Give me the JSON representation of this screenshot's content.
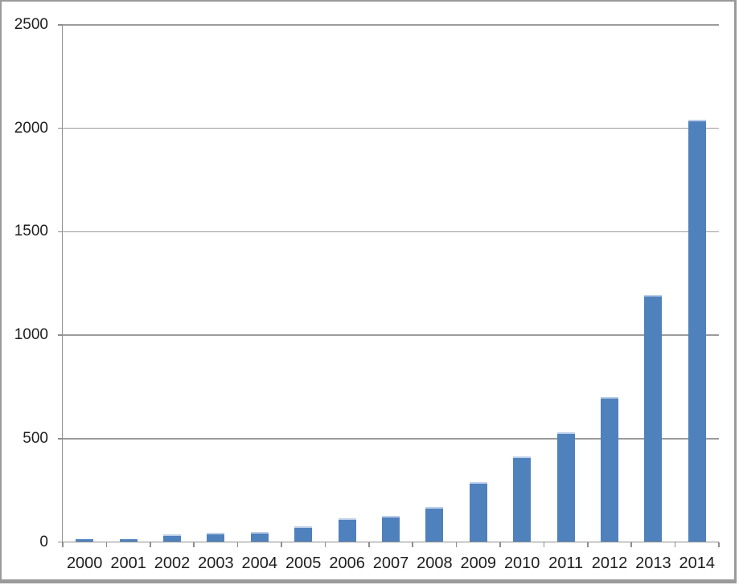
{
  "chart_data": {
    "type": "bar",
    "title": "",
    "xlabel": "",
    "ylabel": "",
    "categories": [
      "2000",
      "2001",
      "2002",
      "2003",
      "2004",
      "2005",
      "2006",
      "2007",
      "2008",
      "2009",
      "2010",
      "2011",
      "2012",
      "2013",
      "2014"
    ],
    "values": [
      15,
      15,
      35,
      45,
      50,
      75,
      115,
      125,
      170,
      290,
      415,
      530,
      700,
      1195,
      2040
    ],
    "ylim": [
      0,
      2500
    ],
    "yticks": [
      0,
      500,
      1000,
      1500,
      2000,
      2500
    ],
    "ytick_labels": [
      "0",
      "500",
      "1000",
      "1500",
      "2000",
      "2500"
    ],
    "grid": true,
    "legend": "none",
    "colors": {
      "bar_fill": "#4f81bd",
      "bar_top_highlight": "#bccfe8",
      "gridline": "#9b9b9b",
      "axis": "#8e8e8e",
      "text": "#1e1e1e",
      "background": "#ffffff",
      "frame_border": "#9a9a9a"
    }
  }
}
